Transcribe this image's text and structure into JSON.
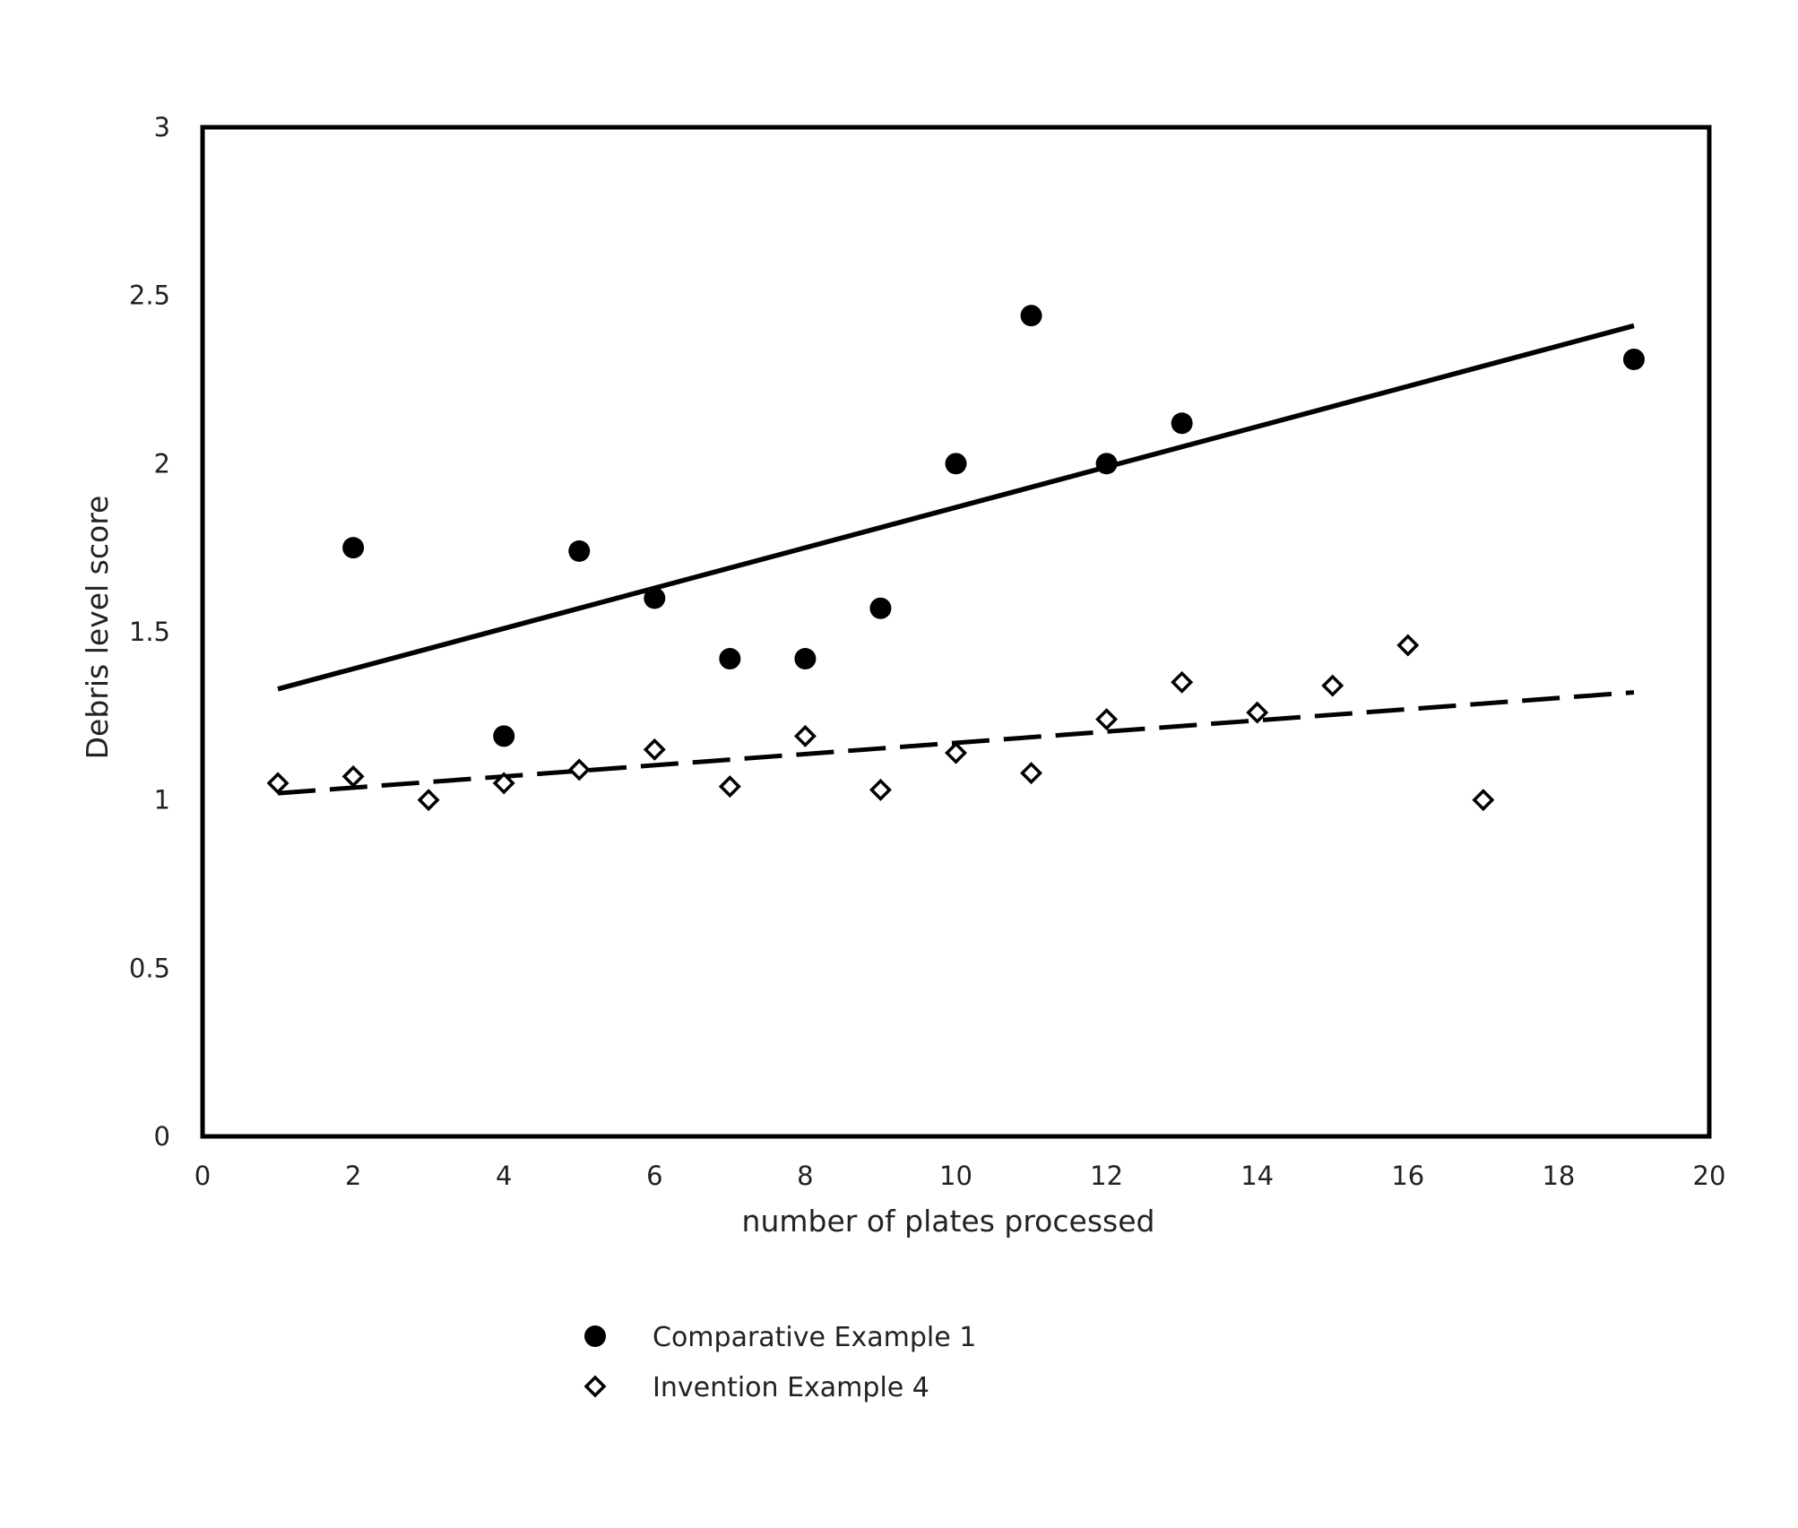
{
  "chart_data": {
    "type": "scatter",
    "title": "",
    "xlabel": "number of plates processed",
    "ylabel": "Debris level score",
    "xlim": [
      0,
      20
    ],
    "ylim": [
      0,
      3
    ],
    "xticks": [
      "0",
      "2",
      "4",
      "6",
      "8",
      "10",
      "12",
      "14",
      "16",
      "18",
      "20"
    ],
    "yticks": [
      "0",
      "0.5",
      "1",
      "1.5",
      "2",
      "2.5",
      "3"
    ],
    "grid": false,
    "legend_position": "bottom-center",
    "series": [
      {
        "name": "Comparative Example 1",
        "marker": "filled-circle",
        "color": "#000000",
        "points": [
          {
            "x": 2,
            "y": 1.75
          },
          {
            "x": 4,
            "y": 1.19
          },
          {
            "x": 5,
            "y": 1.74
          },
          {
            "x": 6,
            "y": 1.6
          },
          {
            "x": 7,
            "y": 1.42
          },
          {
            "x": 8,
            "y": 1.42
          },
          {
            "x": 9,
            "y": 1.57
          },
          {
            "x": 10,
            "y": 2.0
          },
          {
            "x": 11,
            "y": 2.44
          },
          {
            "x": 12,
            "y": 2.0
          },
          {
            "x": 13,
            "y": 2.12
          },
          {
            "x": 19,
            "y": 2.31
          }
        ],
        "trendline": {
          "style": "solid",
          "from": {
            "x": 1,
            "y": 1.33
          },
          "to": {
            "x": 19,
            "y": 2.41
          }
        }
      },
      {
        "name": "Invention Example  4",
        "marker": "open-diamond",
        "color": "#000000",
        "points": [
          {
            "x": 1,
            "y": 1.05
          },
          {
            "x": 2,
            "y": 1.07
          },
          {
            "x": 3,
            "y": 1.0
          },
          {
            "x": 4,
            "y": 1.05
          },
          {
            "x": 5,
            "y": 1.09
          },
          {
            "x": 6,
            "y": 1.15
          },
          {
            "x": 7,
            "y": 1.04
          },
          {
            "x": 8,
            "y": 1.19
          },
          {
            "x": 9,
            "y": 1.03
          },
          {
            "x": 10,
            "y": 1.14
          },
          {
            "x": 11,
            "y": 1.08
          },
          {
            "x": 12,
            "y": 1.24
          },
          {
            "x": 13,
            "y": 1.35
          },
          {
            "x": 14,
            "y": 1.26
          },
          {
            "x": 15,
            "y": 1.34
          },
          {
            "x": 16,
            "y": 1.46
          },
          {
            "x": 17,
            "y": 1.0
          }
        ],
        "trendline": {
          "style": "dashed",
          "from": {
            "x": 1,
            "y": 1.02
          },
          "to": {
            "x": 19,
            "y": 1.32
          }
        }
      }
    ]
  }
}
